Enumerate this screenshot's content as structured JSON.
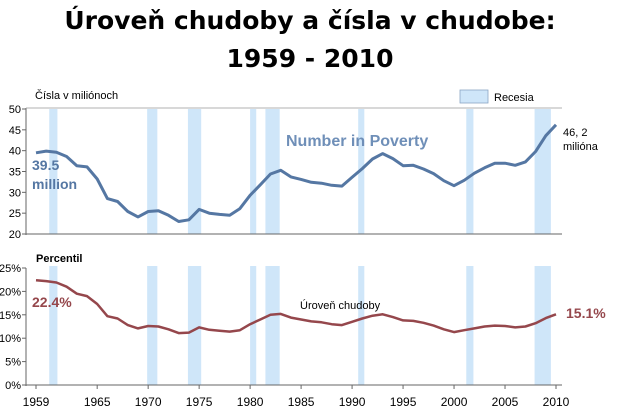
{
  "title_line1": "Úroveň chudoby a čísla v chudobe:",
  "title_line2": "1959 - 2010",
  "chart_data": [
    {
      "type": "line",
      "ylabel": "Čísla v miliónoch",
      "ylim": [
        20,
        50
      ],
      "yticks": [
        20,
        25,
        30,
        35,
        40,
        45,
        50
      ],
      "ytick_labels": [
        "20",
        "25",
        "30",
        "35",
        "40",
        "45",
        "50"
      ],
      "grid": false,
      "legend": {
        "label": "Recesia",
        "placement": "top-right"
      },
      "series": [
        {
          "name": "Number in Poverty",
          "color": "#5577a3",
          "x": [
            1959,
            1960,
            1961,
            1962,
            1963,
            1964,
            1965,
            1966,
            1967,
            1968,
            1969,
            1970,
            1971,
            1972,
            1973,
            1974,
            1975,
            1976,
            1977,
            1978,
            1979,
            1980,
            1981,
            1982,
            1983,
            1984,
            1985,
            1986,
            1987,
            1988,
            1989,
            1990,
            1991,
            1992,
            1993,
            1994,
            1995,
            1996,
            1997,
            1998,
            1999,
            2000,
            2001,
            2002,
            2003,
            2004,
            2005,
            2006,
            2007,
            2008,
            2009,
            2010
          ],
          "values": [
            39.5,
            39.9,
            39.6,
            38.6,
            36.4,
            36.1,
            33.2,
            28.5,
            27.8,
            25.4,
            24.1,
            25.4,
            25.6,
            24.5,
            23.0,
            23.4,
            25.9,
            25.0,
            24.7,
            24.5,
            26.1,
            29.3,
            31.8,
            34.4,
            35.3,
            33.7,
            33.1,
            32.4,
            32.2,
            31.7,
            31.5,
            33.6,
            35.7,
            38.0,
            39.3,
            38.1,
            36.4,
            36.5,
            35.6,
            34.5,
            32.8,
            31.6,
            32.9,
            34.6,
            35.9,
            37.0,
            37.0,
            36.5,
            37.3,
            39.8,
            43.6,
            46.2
          ]
        }
      ],
      "annotations": [
        {
          "text_lines": [
            "39.5",
            "million"
          ],
          "color": "#5577a3"
        },
        {
          "text_lines": [
            "46, 2",
            "milióna"
          ],
          "color": "#000000"
        }
      ],
      "recessions": [
        [
          1960.3,
          1961.1
        ],
        [
          1969.9,
          1970.9
        ],
        [
          1973.9,
          1975.2
        ],
        [
          1980.0,
          1980.6
        ],
        [
          1981.5,
          1982.9
        ],
        [
          1990.6,
          1991.2
        ],
        [
          2001.2,
          2001.9
        ],
        [
          2007.9,
          2009.5
        ]
      ]
    },
    {
      "type": "line",
      "ylabel": "Percentil",
      "ylim": [
        0,
        25
      ],
      "yticks": [
        0,
        5,
        10,
        15,
        20,
        25
      ],
      "ytick_labels": [
        "0%",
        "5%",
        "10%",
        "15%",
        "20%",
        "25%"
      ],
      "xlim": [
        1959,
        2010
      ],
      "xticks": [
        1959,
        1965,
        1970,
        1975,
        1980,
        1985,
        1990,
        1995,
        2000,
        2005,
        2010
      ],
      "grid": false,
      "series": [
        {
          "name": "Úroveň chudoby",
          "color": "#95474c",
          "x": [
            1959,
            1960,
            1961,
            1962,
            1963,
            1964,
            1965,
            1966,
            1967,
            1968,
            1969,
            1970,
            1971,
            1972,
            1973,
            1974,
            1975,
            1976,
            1977,
            1978,
            1979,
            1980,
            1981,
            1982,
            1983,
            1984,
            1985,
            1986,
            1987,
            1988,
            1989,
            1990,
            1991,
            1992,
            1993,
            1994,
            1995,
            1996,
            1997,
            1998,
            1999,
            2000,
            2001,
            2002,
            2003,
            2004,
            2005,
            2006,
            2007,
            2008,
            2009,
            2010
          ],
          "values": [
            22.4,
            22.2,
            21.9,
            21.0,
            19.5,
            19.0,
            17.3,
            14.7,
            14.2,
            12.8,
            12.1,
            12.6,
            12.5,
            11.9,
            11.1,
            11.2,
            12.3,
            11.8,
            11.6,
            11.4,
            11.7,
            13.0,
            14.0,
            15.0,
            15.2,
            14.4,
            14.0,
            13.6,
            13.4,
            13.0,
            12.8,
            13.5,
            14.2,
            14.8,
            15.1,
            14.5,
            13.8,
            13.7,
            13.3,
            12.7,
            11.9,
            11.3,
            11.7,
            12.1,
            12.5,
            12.7,
            12.6,
            12.3,
            12.5,
            13.2,
            14.3,
            15.1
          ]
        }
      ],
      "annotations": [
        {
          "text_lines": [
            "22.4%"
          ],
          "color": "#95474c"
        },
        {
          "text_lines": [
            "15.1%"
          ],
          "color": "#95474c"
        }
      ],
      "recessions": [
        [
          1960.3,
          1961.1
        ],
        [
          1969.9,
          1970.9
        ],
        [
          1973.9,
          1975.2
        ],
        [
          1980.0,
          1980.6
        ],
        [
          1981.5,
          1982.9
        ],
        [
          1990.6,
          1991.2
        ],
        [
          2001.2,
          2001.9
        ],
        [
          2007.9,
          2009.5
        ]
      ]
    }
  ],
  "colors": {
    "recession": "#cfe6f9",
    "recession_border": "#8aa6c4",
    "axis": "#555555"
  }
}
